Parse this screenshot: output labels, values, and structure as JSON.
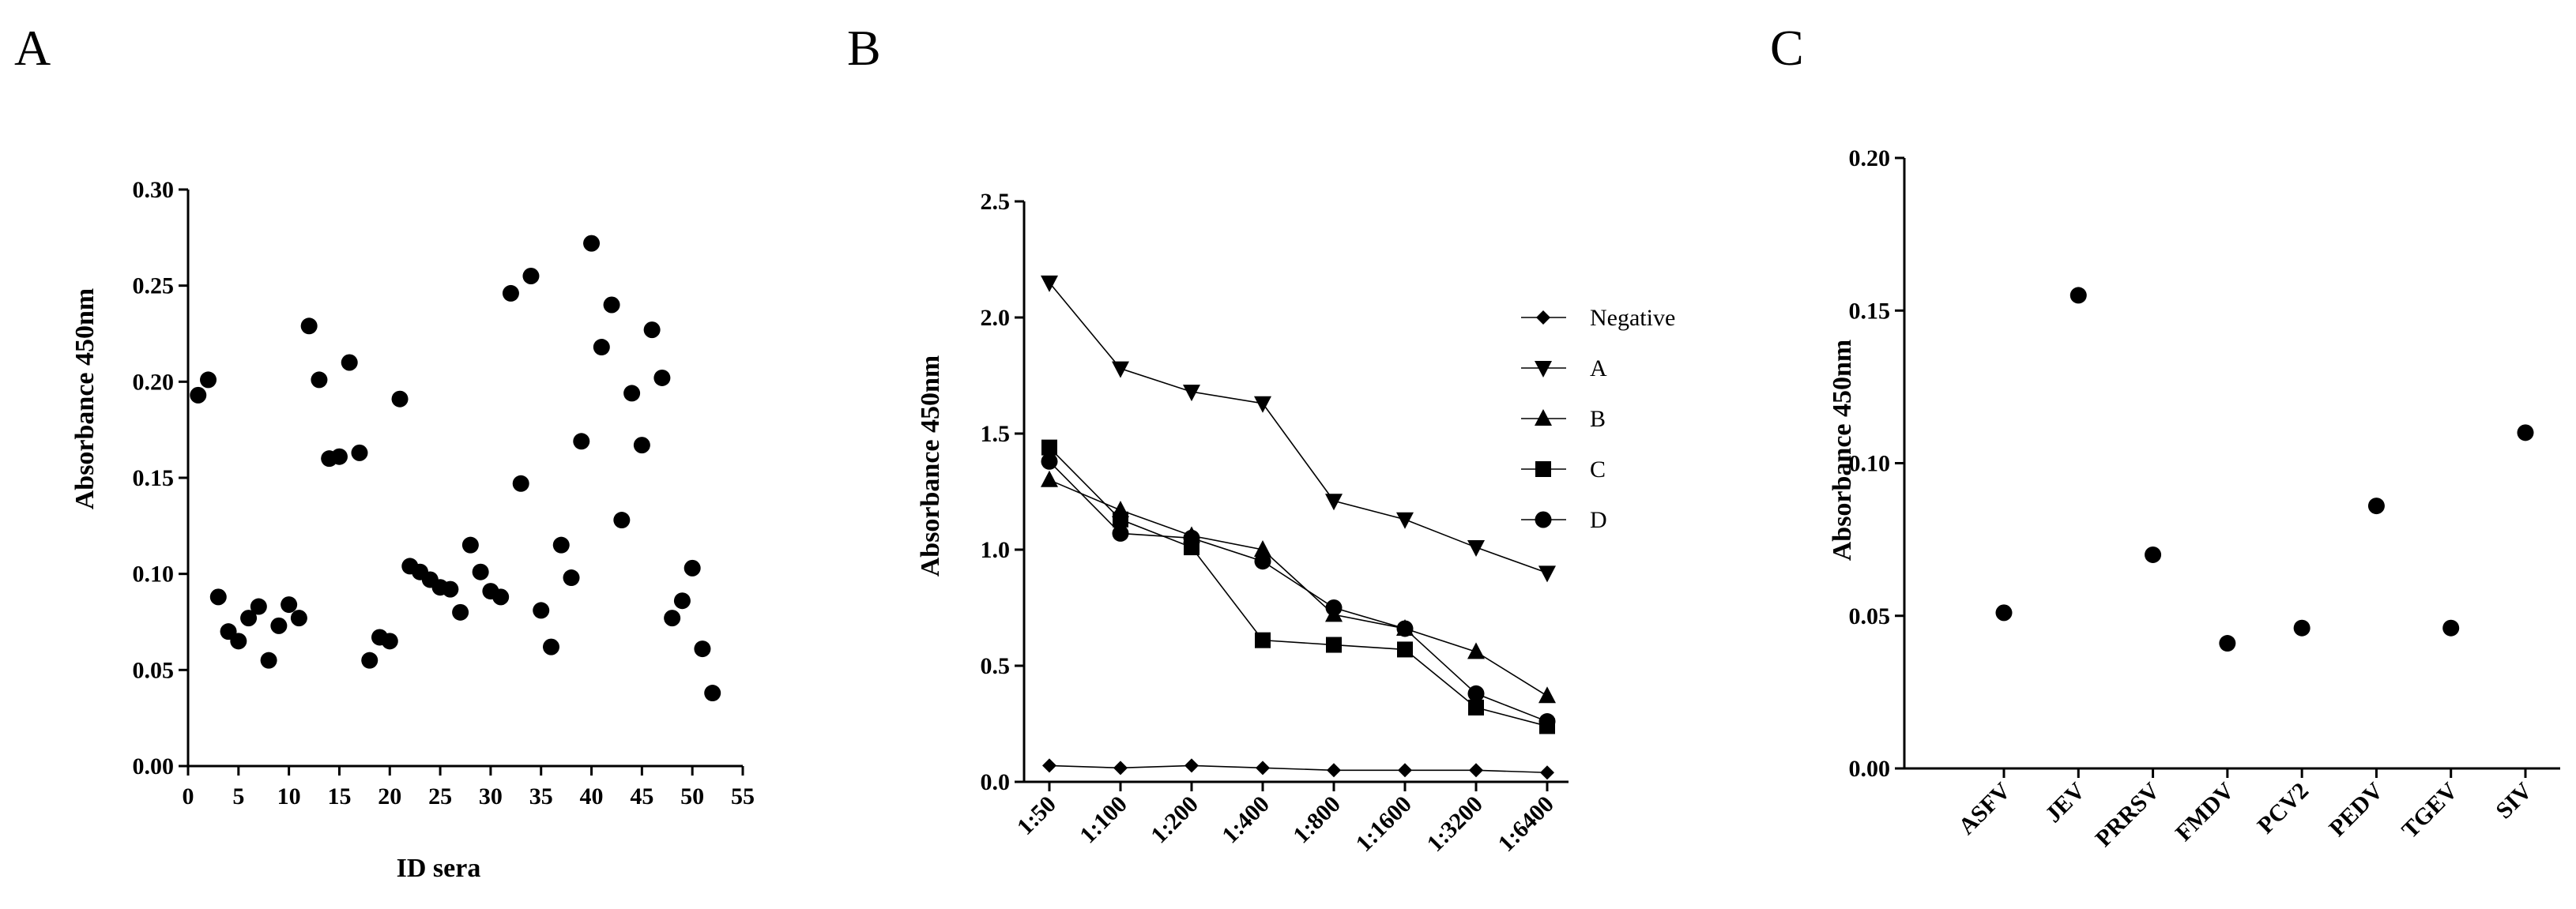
{
  "chart_data": [
    {
      "panel": "A",
      "type": "scatter",
      "title": "",
      "xlabel": "ID sera",
      "ylabel": "Absorbance 450nm",
      "xlim": [
        0,
        55
      ],
      "ylim": [
        0,
        0.3
      ],
      "xticks": [
        "0",
        "5",
        "10",
        "15",
        "20",
        "25",
        "30",
        "35",
        "40",
        "45",
        "50",
        "55"
      ],
      "yticks": [
        "0.00",
        "0.05",
        "0.10",
        "0.15",
        "0.20",
        "0.25",
        "0.30"
      ],
      "points": [
        [
          1,
          0.193
        ],
        [
          2,
          0.201
        ],
        [
          3,
          0.088
        ],
        [
          4,
          0.07
        ],
        [
          5,
          0.065
        ],
        [
          6,
          0.077
        ],
        [
          7,
          0.083
        ],
        [
          8,
          0.055
        ],
        [
          9,
          0.073
        ],
        [
          10,
          0.084
        ],
        [
          11,
          0.077
        ],
        [
          12,
          0.229
        ],
        [
          13,
          0.201
        ],
        [
          14,
          0.16
        ],
        [
          15,
          0.161
        ],
        [
          16,
          0.21
        ],
        [
          17,
          0.163
        ],
        [
          18,
          0.055
        ],
        [
          19,
          0.067
        ],
        [
          20,
          0.065
        ],
        [
          21,
          0.191
        ],
        [
          22,
          0.104
        ],
        [
          23,
          0.101
        ],
        [
          24,
          0.097
        ],
        [
          25,
          0.093
        ],
        [
          26,
          0.092
        ],
        [
          27,
          0.08
        ],
        [
          28,
          0.115
        ],
        [
          29,
          0.101
        ],
        [
          30,
          0.091
        ],
        [
          31,
          0.088
        ],
        [
          32,
          0.246
        ],
        [
          33,
          0.147
        ],
        [
          34,
          0.255
        ],
        [
          35,
          0.081
        ],
        [
          36,
          0.062
        ],
        [
          37,
          0.115
        ],
        [
          38,
          0.098
        ],
        [
          39,
          0.169
        ],
        [
          40,
          0.272
        ],
        [
          41,
          0.218
        ],
        [
          42,
          0.24
        ],
        [
          43,
          0.128
        ],
        [
          44,
          0.194
        ],
        [
          45,
          0.167
        ],
        [
          46,
          0.227
        ],
        [
          47,
          0.202
        ],
        [
          48,
          0.077
        ],
        [
          49,
          0.086
        ],
        [
          50,
          0.103
        ],
        [
          51,
          0.061
        ],
        [
          52,
          0.038
        ]
      ]
    },
    {
      "panel": "B",
      "type": "line",
      "title": "",
      "xlabel": "",
      "ylabel": "Absorbance 450nm",
      "categories": [
        "1:50",
        "1:100",
        "1:200",
        "1:400",
        "1:800",
        "1:1600",
        "1:3200",
        "1:6400"
      ],
      "ylim": [
        0,
        2.5
      ],
      "yticks": [
        "0.0",
        "0.5",
        "1.0",
        "1.5",
        "2.0",
        "2.5"
      ],
      "legend_position": "right",
      "series": [
        {
          "name": "Negative",
          "marker": "diamond",
          "values": [
            0.07,
            0.06,
            0.07,
            0.06,
            0.05,
            0.05,
            0.05,
            0.04
          ]
        },
        {
          "name": "A",
          "marker": "triangle-down",
          "values": [
            2.15,
            1.78,
            1.68,
            1.63,
            1.21,
            1.13,
            1.01,
            0.9
          ]
        },
        {
          "name": "B",
          "marker": "triangle-up",
          "values": [
            1.3,
            1.17,
            1.06,
            1.0,
            0.72,
            0.66,
            0.56,
            0.37
          ]
        },
        {
          "name": "C",
          "marker": "square",
          "values": [
            1.44,
            1.13,
            1.01,
            0.61,
            0.59,
            0.57,
            0.32,
            0.24
          ]
        },
        {
          "name": "D",
          "marker": "circle",
          "values": [
            1.38,
            1.07,
            1.05,
            0.95,
            0.75,
            0.66,
            0.38,
            0.26
          ]
        }
      ]
    },
    {
      "panel": "C",
      "type": "scatter",
      "title": "",
      "xlabel": "",
      "ylabel": "Absorbance 450nm",
      "categories": [
        "ASFV",
        "JEV",
        "PRRSV",
        "FMDV",
        "PCV2",
        "PEDV",
        "TGEV",
        "SIV"
      ],
      "values": [
        0.051,
        0.155,
        0.07,
        0.041,
        0.046,
        0.086,
        0.046,
        0.11
      ],
      "ylim": [
        0,
        0.2
      ],
      "yticks": [
        "0.00",
        "0.05",
        "0.10",
        "0.15",
        "0.20"
      ]
    }
  ]
}
